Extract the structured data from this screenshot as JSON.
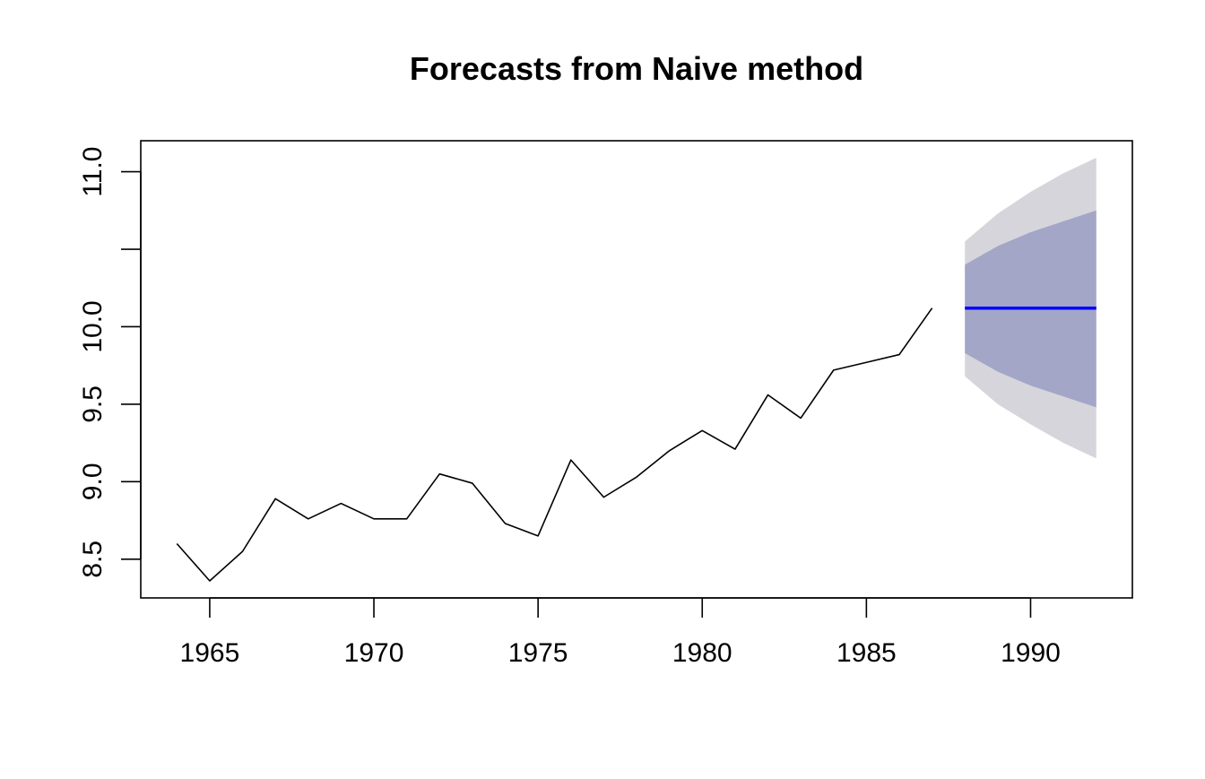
{
  "chart_data": {
    "type": "line",
    "title": "Forecasts from Naive method",
    "xlabel": "",
    "ylabel": "",
    "xlim": [
      1962.9,
      1993.1
    ],
    "ylim": [
      8.25,
      11.2
    ],
    "x_ticks": [
      1965,
      1970,
      1975,
      1980,
      1985,
      1990
    ],
    "x_tick_labels": [
      "1965",
      "1970",
      "1975",
      "1980",
      "1985",
      "1990"
    ],
    "y_ticks": [
      8.5,
      9.0,
      9.5,
      10.0,
      10.5,
      11.0
    ],
    "y_tick_labels": [
      "8.5",
      "9.0",
      "9.5",
      "10.0",
      "",
      "11.0"
    ],
    "grid": false,
    "series": [
      {
        "role": "observed",
        "color": "#000000",
        "x": [
          1964,
          1965,
          1966,
          1967,
          1968,
          1969,
          1970,
          1971,
          1972,
          1973,
          1974,
          1975,
          1976,
          1977,
          1978,
          1979,
          1980,
          1981,
          1982,
          1983,
          1984,
          1985,
          1986,
          1987
        ],
        "values": [
          8.6,
          8.36,
          8.55,
          8.89,
          8.76,
          8.86,
          8.76,
          8.76,
          9.05,
          8.99,
          8.73,
          8.65,
          9.14,
          8.9,
          9.03,
          9.2,
          9.33,
          9.21,
          9.56,
          9.41,
          9.72,
          9.77,
          9.82,
          10.12
        ]
      },
      {
        "role": "forecast",
        "color": "#0000ff",
        "x": [
          1988,
          1989,
          1990,
          1991,
          1992
        ],
        "values": [
          10.12,
          10.12,
          10.12,
          10.12,
          10.12
        ]
      }
    ],
    "intervals": [
      {
        "level": 95,
        "color": "#d5d5db",
        "x": [
          1988,
          1989,
          1990,
          1991,
          1992
        ],
        "lower": [
          9.68,
          9.5,
          9.37,
          9.25,
          9.15
        ],
        "upper": [
          10.55,
          10.73,
          10.87,
          10.99,
          11.09
        ]
      },
      {
        "level": 80,
        "color": "#a3a6c6",
        "x": [
          1988,
          1989,
          1990,
          1991,
          1992
        ],
        "lower": [
          9.83,
          9.71,
          9.62,
          9.55,
          9.48
        ],
        "upper": [
          10.4,
          10.52,
          10.61,
          10.68,
          10.75
        ]
      }
    ]
  }
}
